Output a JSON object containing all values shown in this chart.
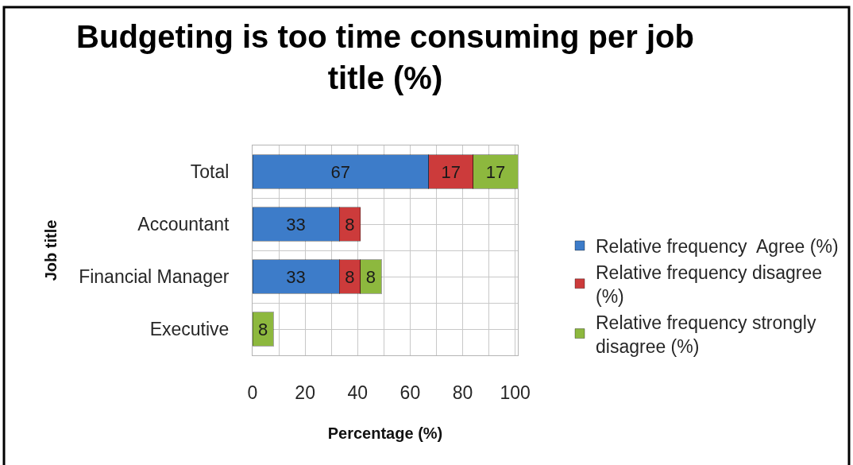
{
  "chart_data": {
    "type": "bar",
    "orientation": "horizontal",
    "stacked": true,
    "title": "Budgeting is too time consuming per job title (%)",
    "xlabel": "Percentage (%)",
    "ylabel": "Job title",
    "categories": [
      "Total",
      "Accountant",
      "Financial Manager",
      "Executive"
    ],
    "series": [
      {
        "name": "Relative frequency  Agree (%)",
        "color": "#3d7cc9",
        "values": [
          67,
          33,
          33,
          null
        ]
      },
      {
        "name": "Relative frequency disagree (%)",
        "color": "#cc3b3b",
        "values": [
          17,
          8,
          8,
          null
        ]
      },
      {
        "name": "Relative frequency strongly disagree (%)",
        "color": "#8db83e",
        "values": [
          17,
          null,
          8,
          8
        ]
      }
    ],
    "xlim": [
      0,
      101
    ],
    "xticks": [
      0,
      {
        "value": 10,
        "label": null
      },
      20,
      {
        "value": 30,
        "label": null
      },
      40,
      {
        "value": 50,
        "label": null
      },
      60,
      {
        "value": 70,
        "label": null
      },
      80,
      {
        "value": 90,
        "label": null
      },
      100
    ],
    "grid": true,
    "legend": "right",
    "data_labels": true
  }
}
